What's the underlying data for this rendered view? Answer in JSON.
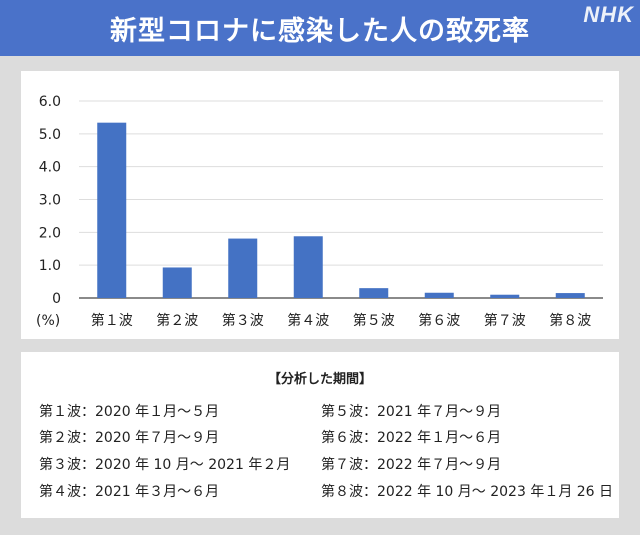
{
  "header": {
    "title": "新型コロナに感染した人の致死率",
    "logo": "NHK"
  },
  "colors": {
    "header_bg": "#4a72c9",
    "bar": "#4472c4",
    "page_bg": "#dcdcdc"
  },
  "chart_data": {
    "type": "bar",
    "title": "",
    "xlabel": "",
    "ylabel": "(%)",
    "categories": [
      "第１波",
      "第２波",
      "第３波",
      "第４波",
      "第５波",
      "第６波",
      "第７波",
      "第８波"
    ],
    "values": [
      5.34,
      0.93,
      1.81,
      1.88,
      0.3,
      0.16,
      0.1,
      0.15
    ],
    "yticks": [
      "6.0",
      "5.0",
      "4.0",
      "3.0",
      "2.0",
      "1.0",
      "0"
    ],
    "ylim": [
      0,
      6
    ],
    "grid": true
  },
  "periods": {
    "title": "【分析した期間】",
    "items": [
      "第１波：2020 年１月〜５月",
      "第２波：2020 年７月〜９月",
      "第３波：2020 年 10 月〜 2021 年２月",
      "第４波：2021 年３月〜６月",
      "第５波：2021 年７月〜９月",
      "第６波：2022 年１月〜６月",
      "第７波：2022 年７月〜９月",
      "第８波：2022 年 10 月〜 2023 年１月 26 日"
    ]
  }
}
